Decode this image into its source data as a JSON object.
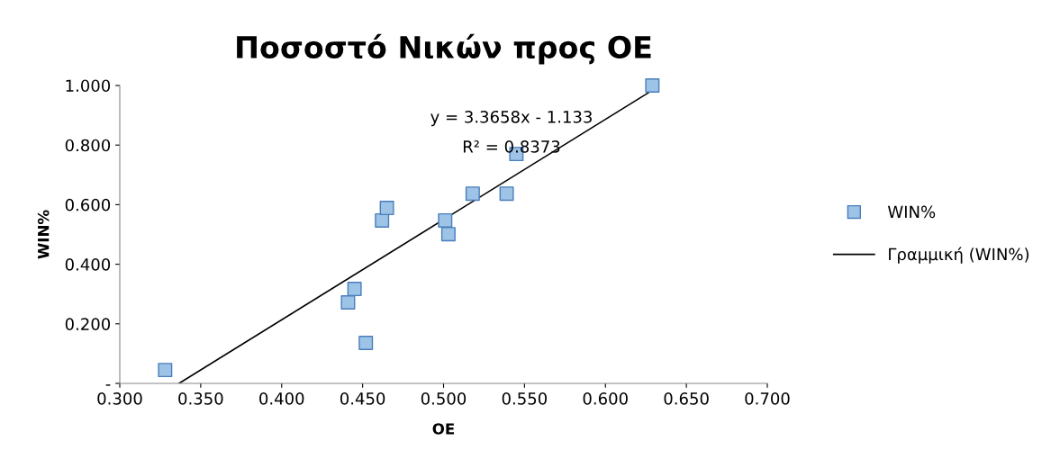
{
  "chart_data": {
    "type": "scatter",
    "title": "Ποσοστό Νικών προς ΟΕ",
    "xlabel": "OE",
    "ylabel": "WIN%",
    "series": [
      {
        "name": "WIN%",
        "color": "#9dc3e6",
        "marker": "square",
        "x": [
          0.328,
          0.441,
          0.445,
          0.452,
          0.462,
          0.465,
          0.501,
          0.503,
          0.518,
          0.539,
          0.545,
          0.629
        ],
        "values": [
          0.045,
          0.272,
          0.317,
          0.136,
          0.547,
          0.589,
          0.547,
          0.501,
          0.637,
          0.637,
          0.77,
          1.0
        ]
      },
      {
        "name": "Γραμμική (WIN%)",
        "type": "line",
        "color": "#000000",
        "marker": "none",
        "line_style": "solid",
        "x": [
          0.3366,
          0.629
        ],
        "values": [
          0.0,
          0.984
        ]
      }
    ],
    "xlim": [
      0.3,
      0.7
    ],
    "xticks": [
      {
        "value": 0.3,
        "label": "0.300"
      },
      {
        "value": 0.35,
        "label": "0.350"
      },
      {
        "value": 0.4,
        "label": "0.400"
      },
      {
        "value": 0.45,
        "label": "0.450"
      },
      {
        "value": 0.5,
        "label": "0.500"
      },
      {
        "value": 0.55,
        "label": "0.550"
      },
      {
        "value": 0.6,
        "label": "0.600"
      },
      {
        "value": 0.65,
        "label": "0.650"
      },
      {
        "value": 0.7,
        "label": "0.700"
      }
    ],
    "ylim": [
      0,
      1.0
    ],
    "yticks": [
      {
        "value": 0,
        "label": "-"
      },
      {
        "value": 0.2,
        "label": "0.200"
      },
      {
        "value": 0.4,
        "label": "0.400"
      },
      {
        "value": 0.6,
        "label": "0.600"
      },
      {
        "value": 0.8,
        "label": "0.800"
      },
      {
        "value": 1.0,
        "label": "1.000"
      }
    ],
    "annotations": [
      "y = 3.3658x - 1.133",
      "R² = 0.8373"
    ],
    "grid": false,
    "legend": "right"
  }
}
